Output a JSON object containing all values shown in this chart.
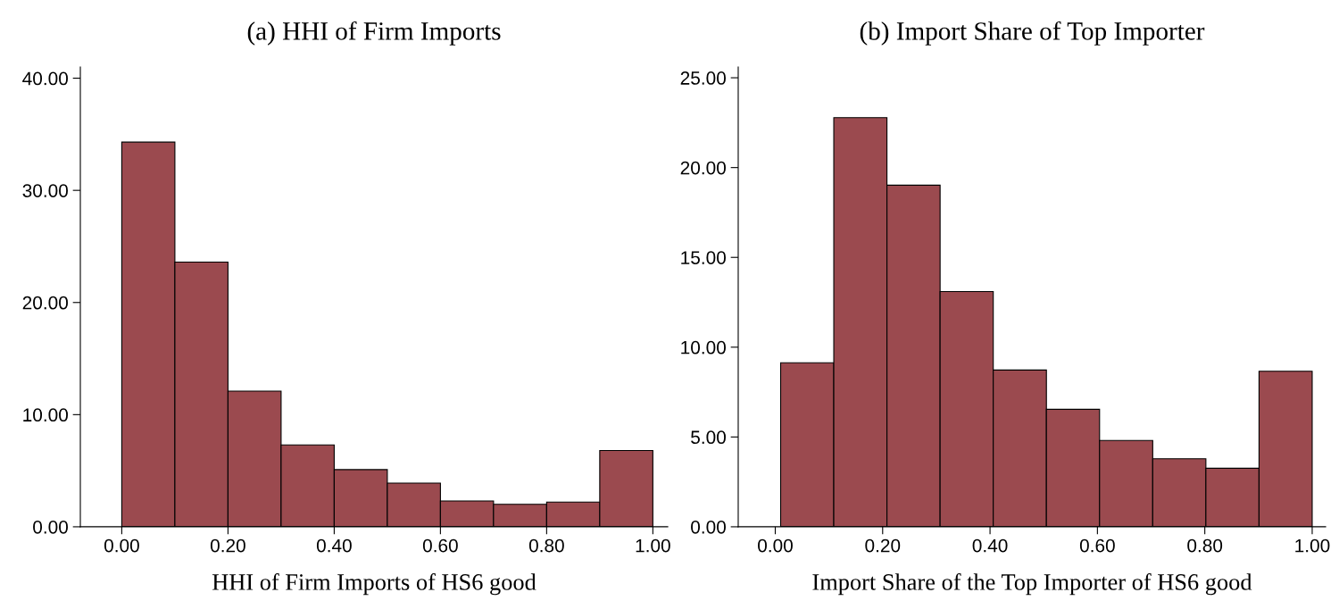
{
  "chart_data": [
    {
      "type": "histogram",
      "title": "(a) HHI of Firm Imports",
      "xlabel": "HHI of Firm Imports of HS6 good",
      "color": "#9b4a4f",
      "bins": [
        0.0,
        0.1,
        0.2,
        0.3,
        0.4,
        0.5,
        0.6,
        0.7,
        0.8,
        0.9,
        1.0
      ],
      "values": [
        34.3,
        23.6,
        12.1,
        7.3,
        5.1,
        3.9,
        2.3,
        2.0,
        2.2,
        6.8
      ],
      "xlim": [
        -0.078,
        1.028
      ],
      "ylim": [
        0,
        41
      ],
      "xticks": [
        {
          "value": 0,
          "label": "0.00"
        },
        {
          "value": 0.2,
          "label": "0.20"
        },
        {
          "value": 0.4,
          "label": "0.40"
        },
        {
          "value": 0.6,
          "label": "0.60"
        },
        {
          "value": 0.8,
          "label": "0.80"
        },
        {
          "value": 1.0,
          "label": "1.00"
        }
      ],
      "yticks": [
        {
          "value": 0,
          "label": "0.00"
        },
        {
          "value": 10,
          "label": "10.00"
        },
        {
          "value": 20,
          "label": "20.00"
        },
        {
          "value": 30,
          "label": "30.00"
        },
        {
          "value": 40,
          "label": "40.00"
        }
      ],
      "grid": false
    },
    {
      "type": "histogram",
      "title": "(b) Import Share of Top Importer",
      "xlabel": "Import Share of the Top Importer of HS6 good",
      "color": "#9b4a4f",
      "bins": [
        0.01,
        0.109,
        0.208,
        0.307,
        0.406,
        0.505,
        0.604,
        0.703,
        0.802,
        0.901,
        1.0
      ],
      "values": [
        9.13,
        22.78,
        19.02,
        13.1,
        8.73,
        6.54,
        4.81,
        3.79,
        3.26,
        8.66
      ],
      "xlim": [
        -0.069,
        1.025
      ],
      "ylim": [
        0,
        25.6
      ],
      "xticks": [
        {
          "value": 0,
          "label": "0.00"
        },
        {
          "value": 0.2,
          "label": "0.20"
        },
        {
          "value": 0.4,
          "label": "0.40"
        },
        {
          "value": 0.6,
          "label": "0.60"
        },
        {
          "value": 0.8,
          "label": "0.80"
        },
        {
          "value": 1.0,
          "label": "1.00"
        }
      ],
      "yticks": [
        {
          "value": 0,
          "label": "0.00"
        },
        {
          "value": 5,
          "label": "5.00"
        },
        {
          "value": 10,
          "label": "10.00"
        },
        {
          "value": 15,
          "label": "15.00"
        },
        {
          "value": 20,
          "label": "20.00"
        },
        {
          "value": 25,
          "label": "25.00"
        }
      ],
      "grid": false
    }
  ]
}
